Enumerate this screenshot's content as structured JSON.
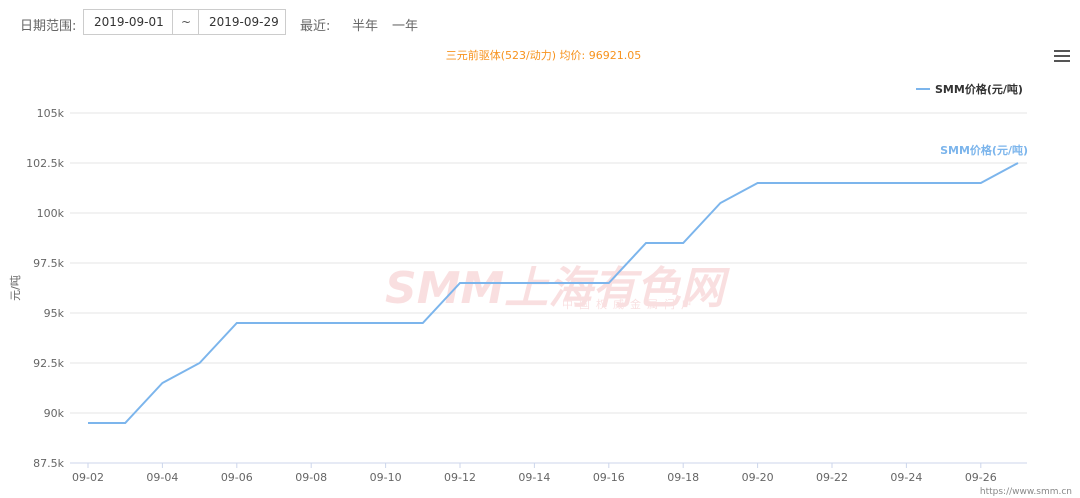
{
  "controls": {
    "date_range_label": "日期范围:",
    "start_date": "2019-09-01",
    "separator": "~",
    "end_date": "2019-09-29",
    "recent_label": "最近:",
    "half_year": "半年",
    "one_year": "一年"
  },
  "watermark": {
    "text": "SMM上海有色网",
    "subtext": "中国权威金属门户"
  },
  "footer": {
    "url": "https://www.smm.cn"
  },
  "chart_data": {
    "type": "line",
    "title": "三元前驱体(523/动力) 均价: 96921.05",
    "ylabel": "元/吨",
    "xlabel": "",
    "ylim": [
      87500,
      105000
    ],
    "yticks": [
      87500,
      90000,
      92500,
      95000,
      97500,
      100000,
      102500,
      105000
    ],
    "ytick_labels": [
      "87.5k",
      "90k",
      "92.5k",
      "95k",
      "97.5k",
      "100k",
      "102.5k",
      "105k"
    ],
    "xtick_labels": [
      "09-02",
      "09-04",
      "09-06",
      "09-08",
      "09-10",
      "09-12",
      "09-14",
      "09-16",
      "09-18",
      "09-20",
      "09-22",
      "09-24",
      "09-26"
    ],
    "grid": true,
    "legend": "top-right",
    "series": [
      {
        "name": "SMM价格(元/吨)",
        "color": "#7cb5ec",
        "x": [
          "09-02",
          "09-03",
          "09-04",
          "09-05",
          "09-06",
          "09-07",
          "09-08",
          "09-09",
          "09-10",
          "09-11",
          "09-12",
          "09-13",
          "09-14",
          "09-15",
          "09-16",
          "09-17",
          "09-18",
          "09-19",
          "09-20",
          "09-21",
          "09-22",
          "09-23",
          "09-24",
          "09-25",
          "09-26",
          "09-27"
        ],
        "values": [
          89500,
          89500,
          91500,
          92500,
          94500,
          94500,
          94500,
          94500,
          94500,
          94500,
          96500,
          96500,
          96500,
          96500,
          96500,
          98500,
          98500,
          100500,
          101500,
          101500,
          101500,
          101500,
          101500,
          101500,
          101500,
          102500
        ]
      }
    ]
  }
}
